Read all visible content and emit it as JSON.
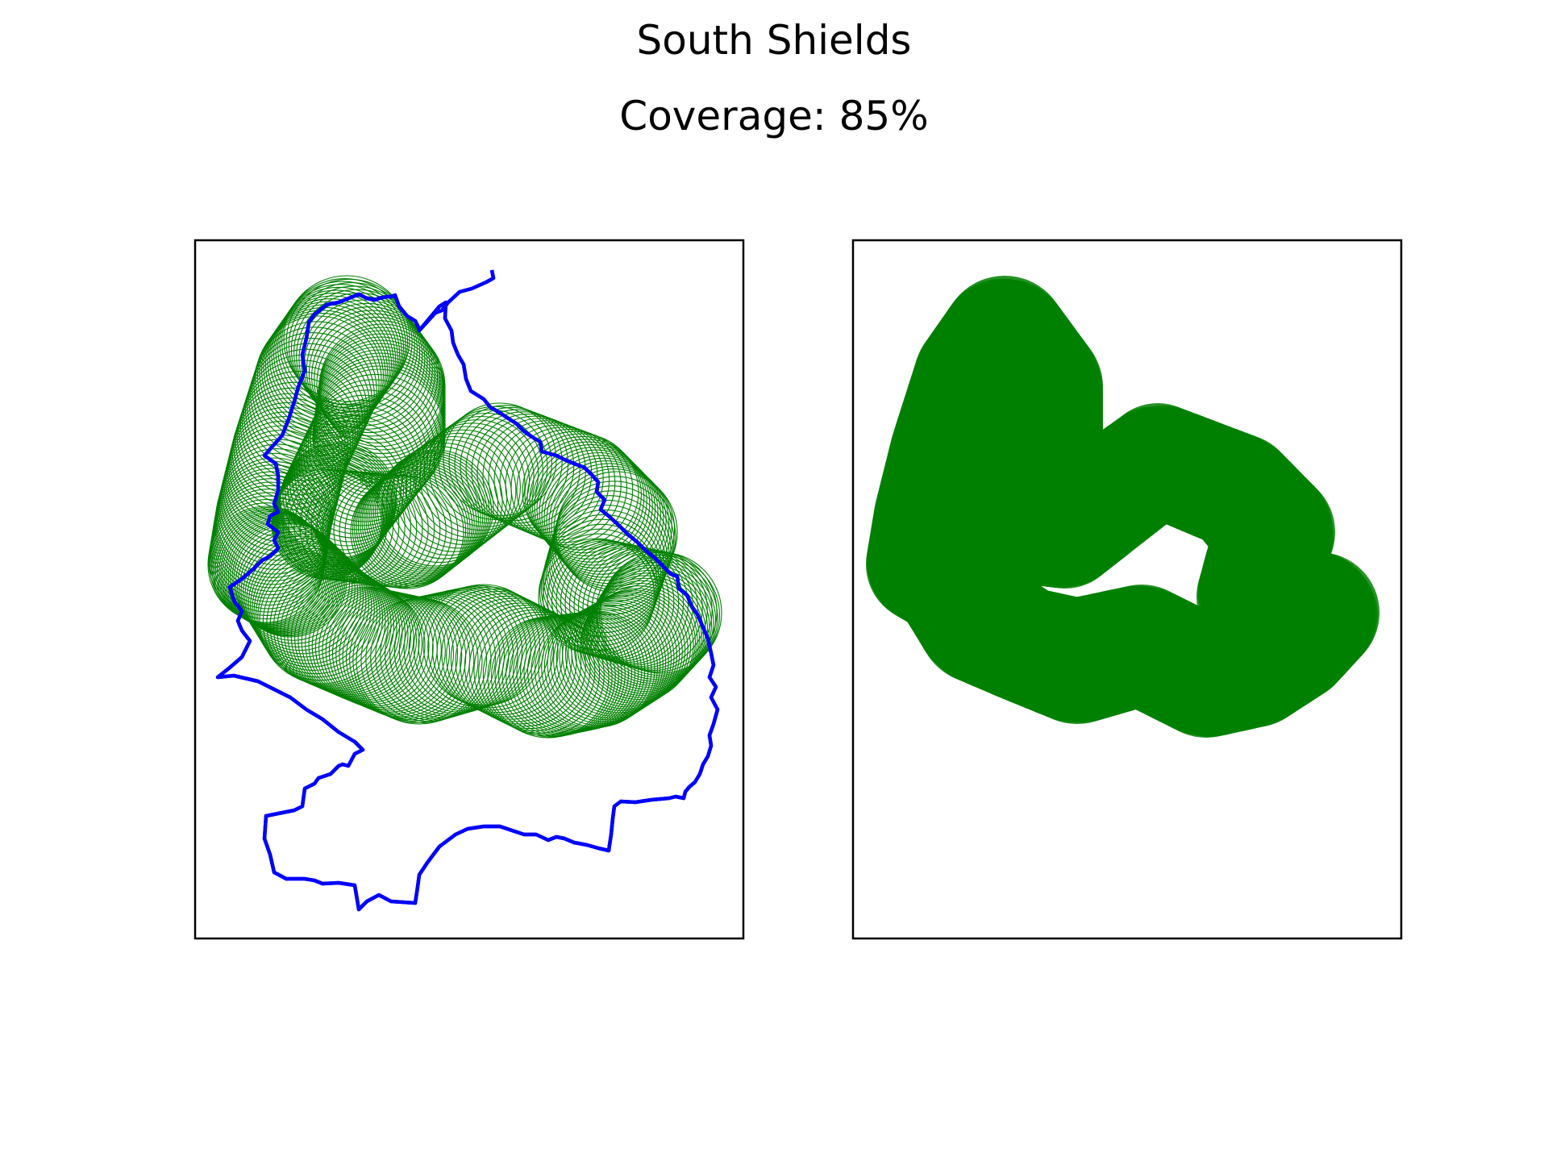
{
  "title": "South Shields",
  "subtitle": "Coverage: 85%",
  "colors": {
    "boundary": "#0000ff",
    "coverage": "#008000",
    "frame": "#000000",
    "background": "#ffffff"
  },
  "panels": [
    {
      "name": "coverage-outline-map",
      "style": "outline"
    },
    {
      "name": "coverage-filled-map",
      "style": "filled"
    }
  ]
}
